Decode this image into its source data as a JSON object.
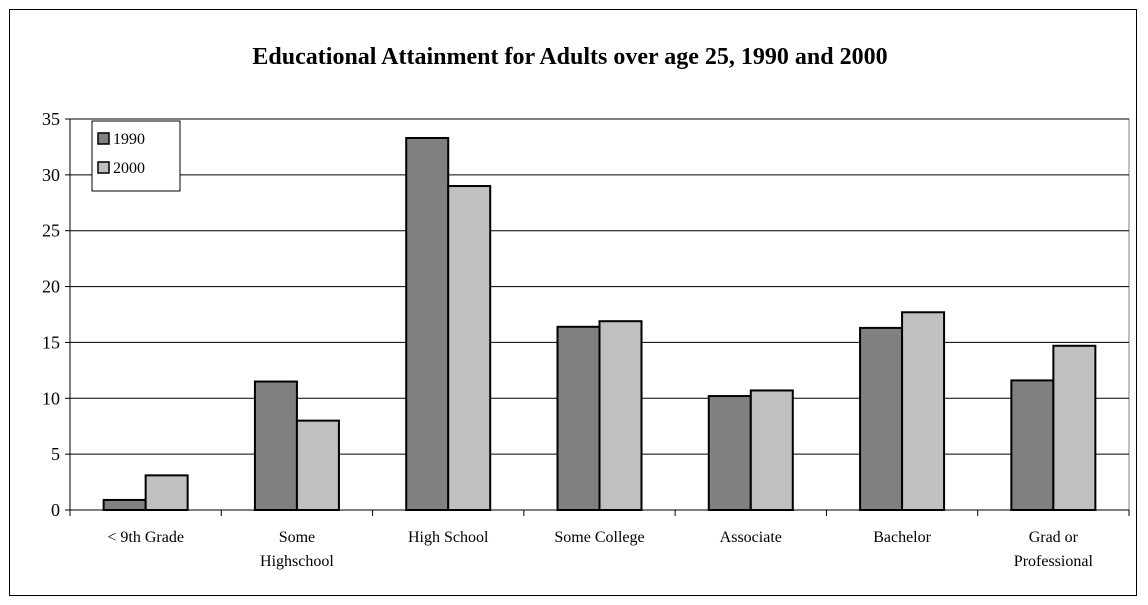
{
  "chart_data": {
    "type": "bar",
    "title": "Educational Attainment for Adults over age 25, 1990 and 2000",
    "xlabel": "",
    "ylabel": "",
    "ylim": [
      0,
      35
    ],
    "yticks": [
      0,
      5,
      10,
      15,
      20,
      25,
      30,
      35
    ],
    "grid": true,
    "legend_position": "top-left",
    "categories": [
      [
        "< 9th Grade"
      ],
      [
        "Some",
        "Highschool"
      ],
      [
        "High School"
      ],
      [
        "Some College"
      ],
      [
        "Associate"
      ],
      [
        "Bachelor"
      ],
      [
        "Grad or",
        "Professional"
      ]
    ],
    "series": [
      {
        "name": "1990",
        "color": "#808080",
        "values": [
          0.9,
          11.5,
          33.3,
          16.4,
          10.2,
          16.3,
          11.6
        ]
      },
      {
        "name": "2000",
        "color": "#c0c0c0",
        "values": [
          3.1,
          8.0,
          29.0,
          16.9,
          10.7,
          17.7,
          14.7
        ]
      }
    ]
  }
}
